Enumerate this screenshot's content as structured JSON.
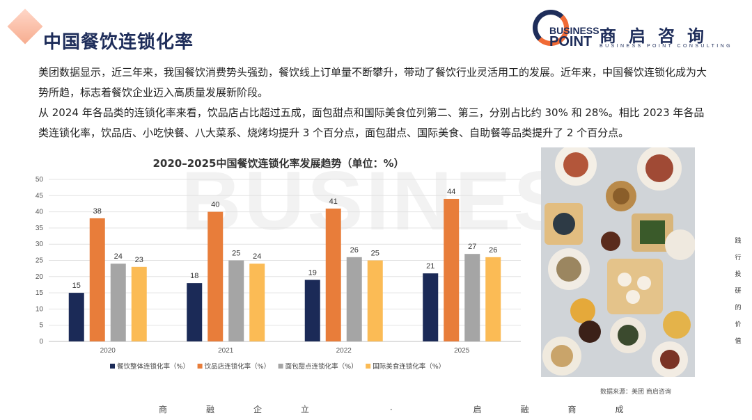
{
  "header": {
    "title": "中国餐饮连锁化率"
  },
  "logo": {
    "en_top": "BUSINESS",
    "en_bottom": "POINT",
    "cn": "商启咨询",
    "sub": "BUSINESS POINT CONSULTING"
  },
  "body": {
    "paragraph1": "美团数据显示，近三年来，我国餐饮消费势头强劲，餐饮线上订单量不断攀升，带动了餐饮行业灵活用工的发展。近年来，中国餐饮连锁化成为大势所趋，标志着餐饮企业迈入高质量发展新阶段。",
    "paragraph2": "从 2024 年各品类的连锁化率来看，饮品店占比超过五成，面包甜点和国际美食位列第二、第三，分别占比约 30% 和 28%。相比 2023 年各品类连锁化率，饮品店、小吃快餐、八大菜系、烧烤均提升 3 个百分点，面包甜点、国际美食、自助餐等品类提升了 2 个百分点。"
  },
  "chart_data": {
    "type": "bar",
    "title": "2020–2025中国餐饮连锁化率发展趋势（单位：%）",
    "categories": [
      "2020",
      "2021",
      "2022",
      "2025"
    ],
    "series": [
      {
        "name": "餐饮整体连锁化率（%）",
        "values": [
          15,
          18,
          19,
          21
        ],
        "color": "#1b2a57"
      },
      {
        "name": "饮品店连锁化率（%）",
        "values": [
          38,
          40,
          41,
          44
        ],
        "color": "#e87d3a"
      },
      {
        "name": "面包甜点连锁化率（%）",
        "values": [
          24,
          25,
          26,
          27
        ],
        "color": "#a5a5a5"
      },
      {
        "name": "国际美食连锁化率（%）",
        "values": [
          23,
          24,
          25,
          26
        ],
        "color": "#fbbb55"
      }
    ],
    "yticks": [
      "0",
      "5",
      "10",
      "15",
      "20",
      "25",
      "30",
      "35",
      "40",
      "45",
      "50"
    ],
    "ylim": [
      0,
      50
    ],
    "grid": true,
    "legend": "bottom"
  },
  "photo": {
    "source": "数据来源：美团      商启咨询"
  },
  "side": {
    "chars": [
      "践",
      "行",
      "投",
      "研",
      "的",
      "价",
      "值"
    ]
  },
  "footer": {
    "slogan": "商融企立 · 启融商成"
  },
  "watermark": "BUSINESS"
}
